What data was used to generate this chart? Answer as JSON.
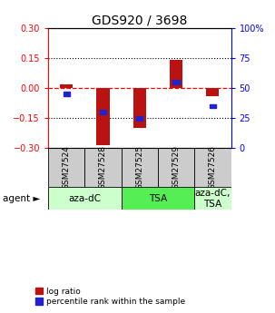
{
  "title": "GDS920 / 3698",
  "samples": [
    "GSM27524",
    "GSM27528",
    "GSM27525",
    "GSM27529",
    "GSM27526"
  ],
  "log_ratios": [
    0.02,
    -0.285,
    -0.2,
    0.14,
    -0.04
  ],
  "percentile_ranks": [
    45,
    30,
    25,
    55,
    35
  ],
  "ylim": [
    -0.3,
    0.3
  ],
  "yticks_left": [
    -0.3,
    -0.15,
    0.0,
    0.15,
    0.3
  ],
  "yticks_right": [
    0,
    25,
    50,
    75,
    100
  ],
  "hlines": [
    -0.15,
    0.0,
    0.15
  ],
  "bar_color": "#bb1111",
  "dot_color": "#2222cc",
  "agent_groups": [
    {
      "label": "aza-dC",
      "span": [
        0,
        2
      ],
      "color": "#ccffcc"
    },
    {
      "label": "TSA",
      "span": [
        2,
        4
      ],
      "color": "#55ee55"
    },
    {
      "label": "aza-dC,\nTSA",
      "span": [
        4,
        5
      ],
      "color": "#ccffcc"
    }
  ],
  "agent_label": "agent",
  "legend_log_ratio": "log ratio",
  "legend_percentile": "percentile rank within the sample",
  "bar_width": 0.35,
  "title_fontsize": 10,
  "tick_fontsize": 7,
  "sample_fontsize": 6.5,
  "agent_fontsize": 7.5
}
